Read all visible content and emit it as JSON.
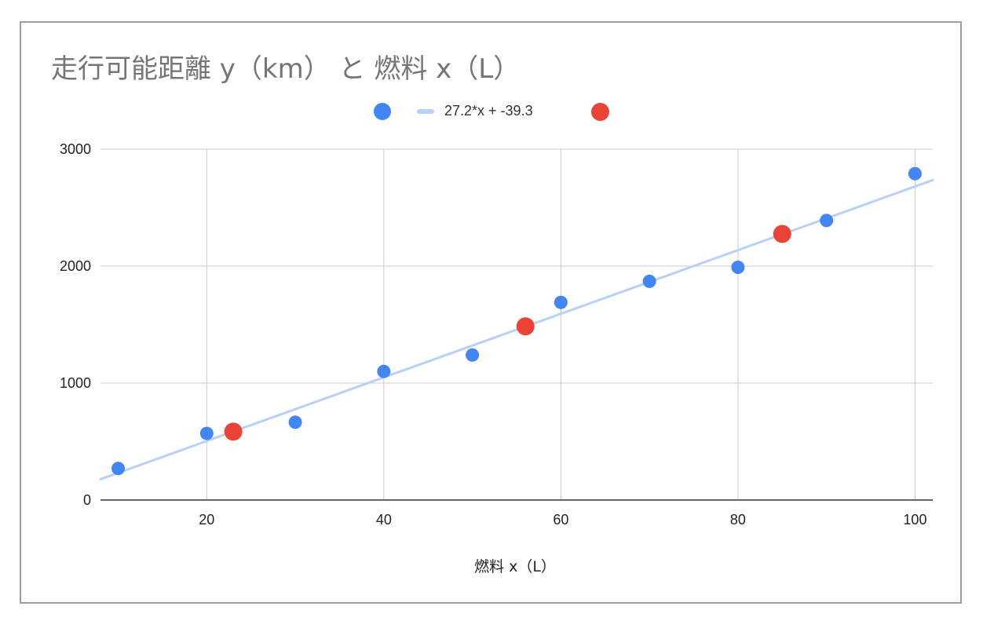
{
  "chart_data": {
    "type": "scatter",
    "title": "走行可能距離 y（km） と 燃料 x（L）",
    "xlabel": "燃料 x（L）",
    "ylabel": "",
    "xlim": [
      8,
      102
    ],
    "ylim": [
      0,
      3000
    ],
    "x_ticks": [
      20,
      40,
      60,
      80,
      100
    ],
    "y_ticks": [
      0,
      1000,
      2000,
      3000
    ],
    "grid": true,
    "legend_position": "top",
    "series": [
      {
        "color": "#4285f4",
        "marker": "circle",
        "points": [
          {
            "x": 10,
            "y": 270
          },
          {
            "x": 20,
            "y": 570
          },
          {
            "x": 30,
            "y": 665
          },
          {
            "x": 40,
            "y": 1100
          },
          {
            "x": 50,
            "y": 1240
          },
          {
            "x": 60,
            "y": 1690
          },
          {
            "x": 70,
            "y": 1870
          },
          {
            "x": 80,
            "y": 1990
          },
          {
            "x": 90,
            "y": 2390
          },
          {
            "x": 100,
            "y": 2790
          }
        ]
      },
      {
        "name": "27.2*x + -39.3",
        "type": "trendline",
        "color": "#b7d0f7",
        "slope": 27.2,
        "intercept": -39.3
      },
      {
        "color": "#ea4335",
        "marker": "circle",
        "points": [
          {
            "x": 23,
            "y": 585
          },
          {
            "x": 56,
            "y": 1485
          },
          {
            "x": 85,
            "y": 2275
          }
        ]
      }
    ]
  }
}
